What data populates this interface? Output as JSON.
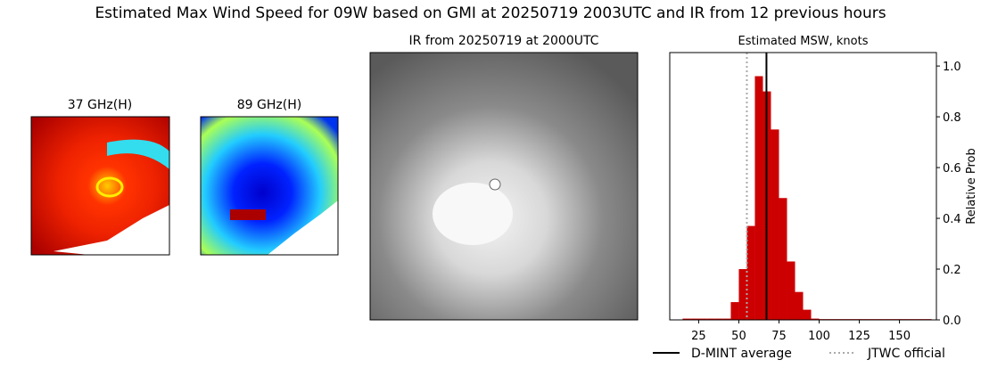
{
  "title": "Estimated Max Wind Speed for 09W based on GMI at 20250719 2003UTC and IR from 12 previous hours",
  "panels": [
    "37 GHz(H)",
    "89 GHz(H)",
    "IR from 20250719 at 2000UTC"
  ],
  "chart_data": {
    "type": "histogram",
    "title": "Estimated MSW, knots",
    "ylabel": "Relative Prob",
    "bins": [
      15,
      20,
      25,
      30,
      35,
      40,
      45,
      50,
      55,
      60,
      65,
      70,
      75,
      80,
      85,
      90,
      95,
      100,
      105,
      110,
      115,
      120,
      125,
      130,
      135,
      140,
      145,
      150,
      155,
      160,
      165,
      170
    ],
    "counts": [
      0.005,
      0.005,
      0.005,
      0.005,
      0.005,
      0.005,
      0.07,
      0.2,
      0.37,
      0.96,
      0.9,
      0.75,
      0.48,
      0.23,
      0.11,
      0.04,
      0.005,
      0.003,
      0.003,
      0.003,
      0.003,
      0.003,
      0.003,
      0.003,
      0.003,
      0.003,
      0.003,
      0.003,
      0.003,
      0.003,
      0.003
    ],
    "color": "#cc0000",
    "xlim": [
      7,
      173
    ],
    "xticks": [
      25,
      50,
      75,
      100,
      125,
      150
    ],
    "ylim": [
      0,
      1.053
    ],
    "yticks": [
      {
        "value": 0,
        "label": "0.0"
      },
      0.2,
      0.4,
      0.6,
      0.8,
      {
        "value": 1,
        "label": "1.0"
      }
    ],
    "lines": [
      {
        "name": "D-MINT average",
        "value": 67.2,
        "color": "#000000",
        "style": "solid"
      },
      {
        "name": "JTWC official",
        "value": 55,
        "color": "#aaaaaa",
        "style": "dotted"
      }
    ]
  }
}
